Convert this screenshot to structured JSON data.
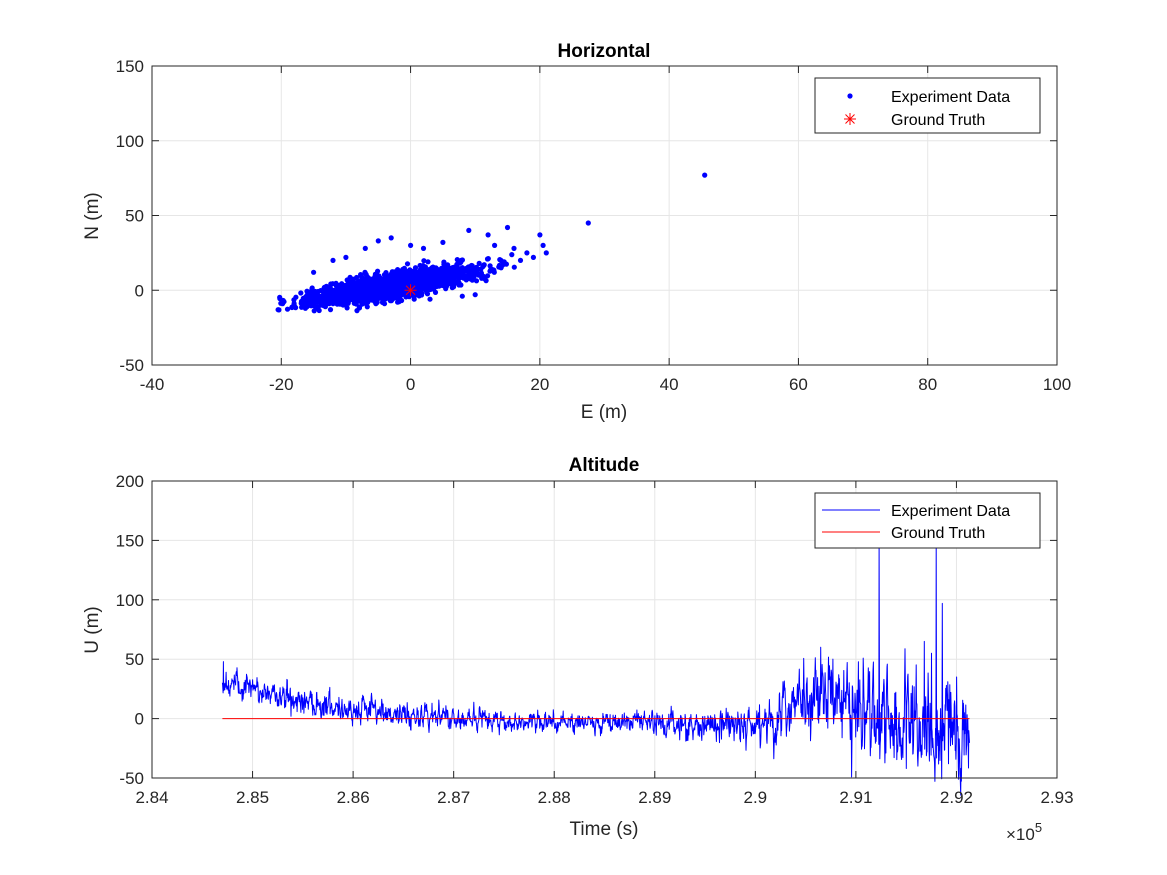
{
  "chart_data": [
    {
      "type": "scatter",
      "title": "Horizontal",
      "xlabel": "E (m)",
      "ylabel": "N (m)",
      "xlim": [
        -40,
        100
      ],
      "ylim": [
        -50,
        150
      ],
      "xticks": [
        -40,
        -20,
        0,
        20,
        40,
        60,
        80,
        100
      ],
      "xtick_labels": [
        "-40",
        "-20",
        "0",
        "20",
        "40",
        "60",
        "80",
        "100"
      ],
      "yticks": [
        -50,
        0,
        50,
        100,
        150
      ],
      "ytick_labels": [
        "-50",
        "0",
        "50",
        "100",
        "150"
      ],
      "grid": true,
      "legend": {
        "location": "top-right",
        "entries": [
          "Experiment Data",
          "Ground Truth"
        ]
      },
      "series": [
        {
          "name": "Experiment Data",
          "marker": "dot",
          "color": "#0000ff",
          "cluster": {
            "center": [
              -3,
              8
            ],
            "spread_e": 6,
            "spread_n": 6,
            "count": 2600,
            "e_range": [
              -21,
              22
            ],
            "n_range": [
              -14,
              42
            ]
          },
          "points": [
            [
              -20.5,
              -13
            ],
            [
              -18,
              -10
            ],
            [
              -16,
              -11
            ],
            [
              -14,
              -7
            ],
            [
              -12,
              -9
            ],
            [
              -8,
              -7
            ],
            [
              -2,
              -8
            ],
            [
              3,
              -6
            ],
            [
              8,
              -4
            ],
            [
              10,
              -3
            ],
            [
              -15,
              12
            ],
            [
              -12,
              20
            ],
            [
              -10,
              22
            ],
            [
              -7,
              28
            ],
            [
              -5,
              33
            ],
            [
              -3,
              35
            ],
            [
              0,
              30
            ],
            [
              2,
              28
            ],
            [
              5,
              32
            ],
            [
              9,
              40
            ],
            [
              12,
              37
            ],
            [
              15,
              42
            ],
            [
              13,
              30
            ],
            [
              16,
              28
            ],
            [
              18,
              25
            ],
            [
              20,
              37
            ],
            [
              21,
              25
            ],
            [
              17,
              20
            ],
            [
              14,
              15
            ],
            [
              11,
              8
            ],
            [
              19,
              22
            ],
            [
              20.5,
              30
            ],
            [
              27.5,
              45
            ],
            [
              45.5,
              77
            ]
          ]
        },
        {
          "name": "Ground Truth",
          "marker": "asterisk",
          "color": "#ff0000",
          "points": [
            [
              0,
              0
            ]
          ]
        }
      ]
    },
    {
      "type": "line",
      "title": "Altitude",
      "xlabel": "Time (s)",
      "ylabel": "U (m)",
      "x_exponent_label": "×10",
      "x_exponent_power": "5",
      "xlim": [
        2.84,
        2.93
      ],
      "ylim": [
        -50,
        200
      ],
      "xticks": [
        2.84,
        2.85,
        2.86,
        2.87,
        2.88,
        2.89,
        2.9,
        2.91,
        2.92,
        2.93
      ],
      "xtick_labels": [
        "2.84",
        "2.85",
        "2.86",
        "2.87",
        "2.88",
        "2.89",
        "2.9",
        "2.91",
        "2.92",
        "2.93"
      ],
      "yticks": [
        -50,
        0,
        50,
        100,
        150,
        200
      ],
      "ytick_labels": [
        "-50",
        "0",
        "50",
        "100",
        "150",
        "200"
      ],
      "grid": true,
      "legend": {
        "location": "top-right",
        "entries": [
          "Experiment Data",
          "Ground Truth"
        ]
      },
      "series": [
        {
          "name": "Experiment Data",
          "color": "#0000ff",
          "x_range": [
            2.847,
            2.9213
          ],
          "trend": [
            [
              2.847,
              30
            ],
            [
              2.849,
              26
            ],
            [
              2.852,
              20
            ],
            [
              2.856,
              14
            ],
            [
              2.86,
              8
            ],
            [
              2.863,
              5
            ],
            [
              2.866,
              3
            ],
            [
              2.87,
              1
            ],
            [
              2.875,
              -2
            ],
            [
              2.88,
              -4
            ],
            [
              2.885,
              -3
            ],
            [
              2.89,
              -4
            ],
            [
              2.895,
              -6
            ],
            [
              2.898,
              -5
            ],
            [
              2.901,
              -2
            ],
            [
              2.903,
              5
            ],
            [
              2.906,
              18
            ],
            [
              2.908,
              15
            ],
            [
              2.91,
              5
            ],
            [
              2.912,
              3
            ],
            [
              2.915,
              0
            ],
            [
              2.918,
              -2
            ],
            [
              2.921,
              -15
            ]
          ],
          "noise": [
            [
              2.847,
              6
            ],
            [
              2.86,
              6
            ],
            [
              2.885,
              4
            ],
            [
              2.9,
              8
            ],
            [
              2.905,
              14
            ],
            [
              2.91,
              20
            ],
            [
              2.915,
              22
            ],
            [
              2.9213,
              20
            ]
          ],
          "spikes": [
            [
              2.8471,
              48
            ],
            [
              2.9065,
              60
            ],
            [
              2.9123,
              150
            ],
            [
              2.915,
              -42
            ],
            [
              2.9168,
              65
            ],
            [
              2.9175,
              55
            ],
            [
              2.918,
              150
            ],
            [
              2.9186,
              97
            ],
            [
              2.9192,
              -38
            ],
            [
              2.92,
              35
            ]
          ],
          "samples": 2200
        },
        {
          "name": "Ground Truth",
          "color": "#ff0000",
          "x": [
            2.847,
            2.9213
          ],
          "y": [
            0,
            0
          ]
        }
      ]
    }
  ]
}
